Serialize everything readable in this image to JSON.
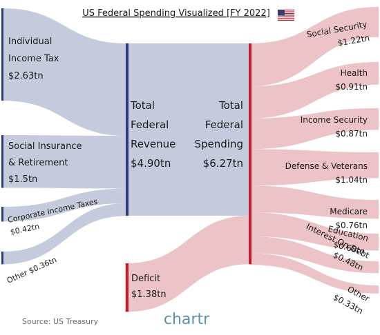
{
  "chart_data": {
    "type": "sankey",
    "title": "US Federal Spending Visualized [FY 2022]",
    "unit": "tn",
    "colors": {
      "revenue_flow": "#c5cbdc",
      "revenue_bar": "#2c3e7a",
      "spending_flow": "#ecc4c8",
      "spending_bar": "#c0202e",
      "deficit_flow": "#ecc4c8"
    },
    "revenue_sources": [
      {
        "name": "Individual Income Tax",
        "lines": [
          "Individual",
          "Income Tax"
        ],
        "label": "$2.63tn",
        "value": 2.63
      },
      {
        "name": "Social Insurance & Retirement",
        "lines": [
          "Social Insurance",
          "& Retirement"
        ],
        "label": "$1.5tn",
        "value": 1.5
      },
      {
        "name": "Corporate Income Taxes",
        "lines": [
          "Corporate Income Taxes"
        ],
        "label": "$0.42tn",
        "value": 0.42
      },
      {
        "name": "Other",
        "lines": [
          "Other"
        ],
        "label": "$0.36tn",
        "value": 0.36
      }
    ],
    "total_revenue": {
      "lines": [
        "Total",
        "Federal",
        "Revenue"
      ],
      "label": "$4.90tn",
      "value": 4.9
    },
    "deficit": {
      "lines": [
        "Deficit"
      ],
      "label": "$1.38tn",
      "value": 1.38
    },
    "total_spending": {
      "lines": [
        "Total",
        "Federal",
        "Spending"
      ],
      "label": "$6.27tn",
      "value": 6.27
    },
    "spending_categories": [
      {
        "name": "Social Security",
        "label": "$1.22tn",
        "value": 1.22
      },
      {
        "name": "Health",
        "label": "$0.91tn",
        "value": 0.91
      },
      {
        "name": "Income Security",
        "label": "$0.87tn",
        "value": 0.87
      },
      {
        "name": "Defense & Veterans",
        "label": "$1.04tn",
        "value": 1.04
      },
      {
        "name": "Medicare",
        "label": "$0.76tn",
        "value": 0.76
      },
      {
        "name": "Education",
        "label": "$0.68tn",
        "value": 0.68
      },
      {
        "name": "Interest On Debt",
        "label": "$0.48tn",
        "value": 0.48
      },
      {
        "name": "Other",
        "label": "$0.33tn",
        "value": 0.33
      }
    ]
  },
  "footer": {
    "source": "Source: US Treasury",
    "brand": "chartr"
  },
  "flag": "us-flag-icon"
}
